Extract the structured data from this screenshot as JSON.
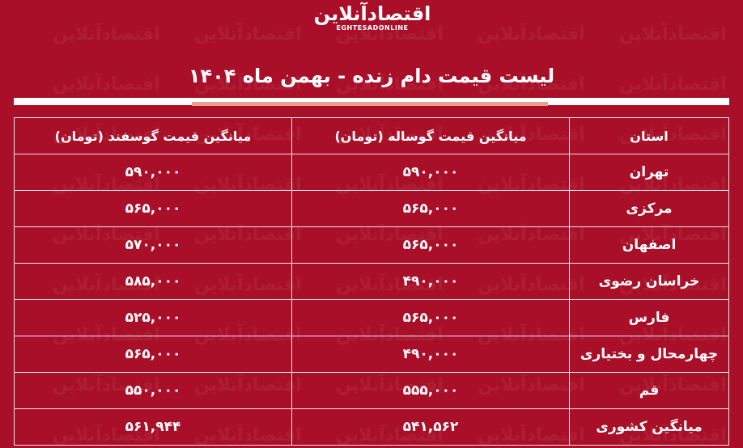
{
  "logo": {
    "fa": "اقتصادآنلاین",
    "en": "EGHTESADONLINE"
  },
  "title": "لیست قیمت دام زنده - بهمن ماه ۱۴۰۴",
  "table": {
    "headers": [
      "استان",
      "میانگین قیمت گوساله (تومان)",
      "میانگین قیمت گوسفند (تومان)"
    ],
    "rows": [
      [
        "تهران",
        "۵۹۰,۰۰۰",
        "۵۹۰,۰۰۰"
      ],
      [
        "مرکزی",
        "۵۶۵,۰۰۰",
        "۵۶۵,۰۰۰"
      ],
      [
        "اصفهان",
        "۵۶۵,۰۰۰",
        "۵۷۰,۰۰۰"
      ],
      [
        "خراسان رضوی",
        "۴۹۰,۰۰۰",
        "۵۸۵,۰۰۰"
      ],
      [
        "فارس",
        "۵۶۵,۰۰۰",
        "۵۲۵,۰۰۰"
      ],
      [
        "چهارمحال و بختیاری",
        "۴۹۰,۰۰۰",
        "۵۶۵,۰۰۰"
      ],
      [
        "قم",
        "۵۵۵,۰۰۰",
        "۵۵۰,۰۰۰"
      ],
      [
        "میانگین کشوری",
        "۵۴۱,۵۶۲",
        "۵۶۱,۹۴۴"
      ]
    ]
  },
  "colors": {
    "background": "#a90f28",
    "accent": "#e8a08e"
  }
}
